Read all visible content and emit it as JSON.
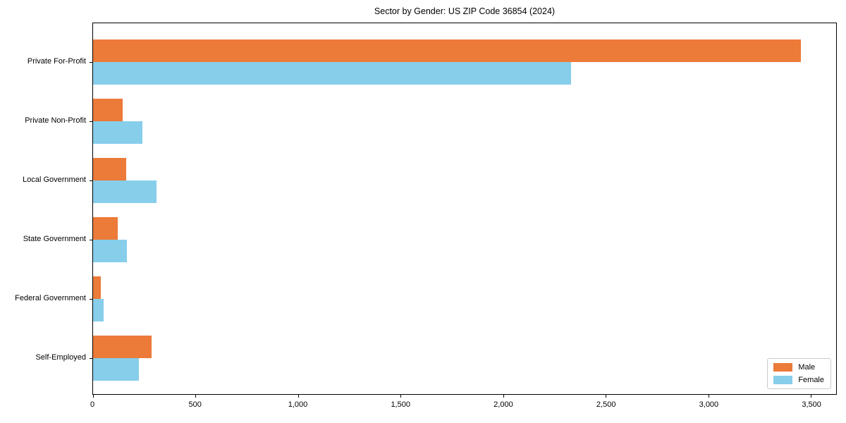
{
  "chart_data": {
    "type": "bar",
    "orientation": "horizontal",
    "title": "Sector by Gender: US ZIP Code 36854 (2024)",
    "categories": [
      "Private For-Profit",
      "Private Non-Profit",
      "Local Government",
      "State Government",
      "Federal Government",
      "Self-Employed"
    ],
    "series": [
      {
        "name": "Male",
        "color": "#EC7A39",
        "values": [
          3450,
          145,
          160,
          120,
          37,
          285
        ]
      },
      {
        "name": "Female",
        "color": "#87CEEB",
        "values": [
          2330,
          240,
          310,
          165,
          50,
          225
        ]
      }
    ],
    "xlabel": "",
    "ylabel": "",
    "xlim": [
      0,
      3623
    ],
    "x_ticks": [
      0,
      500,
      1000,
      1500,
      2000,
      2500,
      3000,
      3500
    ],
    "x_tick_labels": [
      "0",
      "500",
      "1,000",
      "1,500",
      "2,000",
      "2,500",
      "3,000",
      "3,500"
    ],
    "grid": "off",
    "legend": {
      "position": "lower right",
      "entries": [
        "Male",
        "Female"
      ]
    },
    "colors": {
      "axis": "#000000",
      "legend_border": "#cccccc",
      "background": "#ffffff"
    }
  }
}
